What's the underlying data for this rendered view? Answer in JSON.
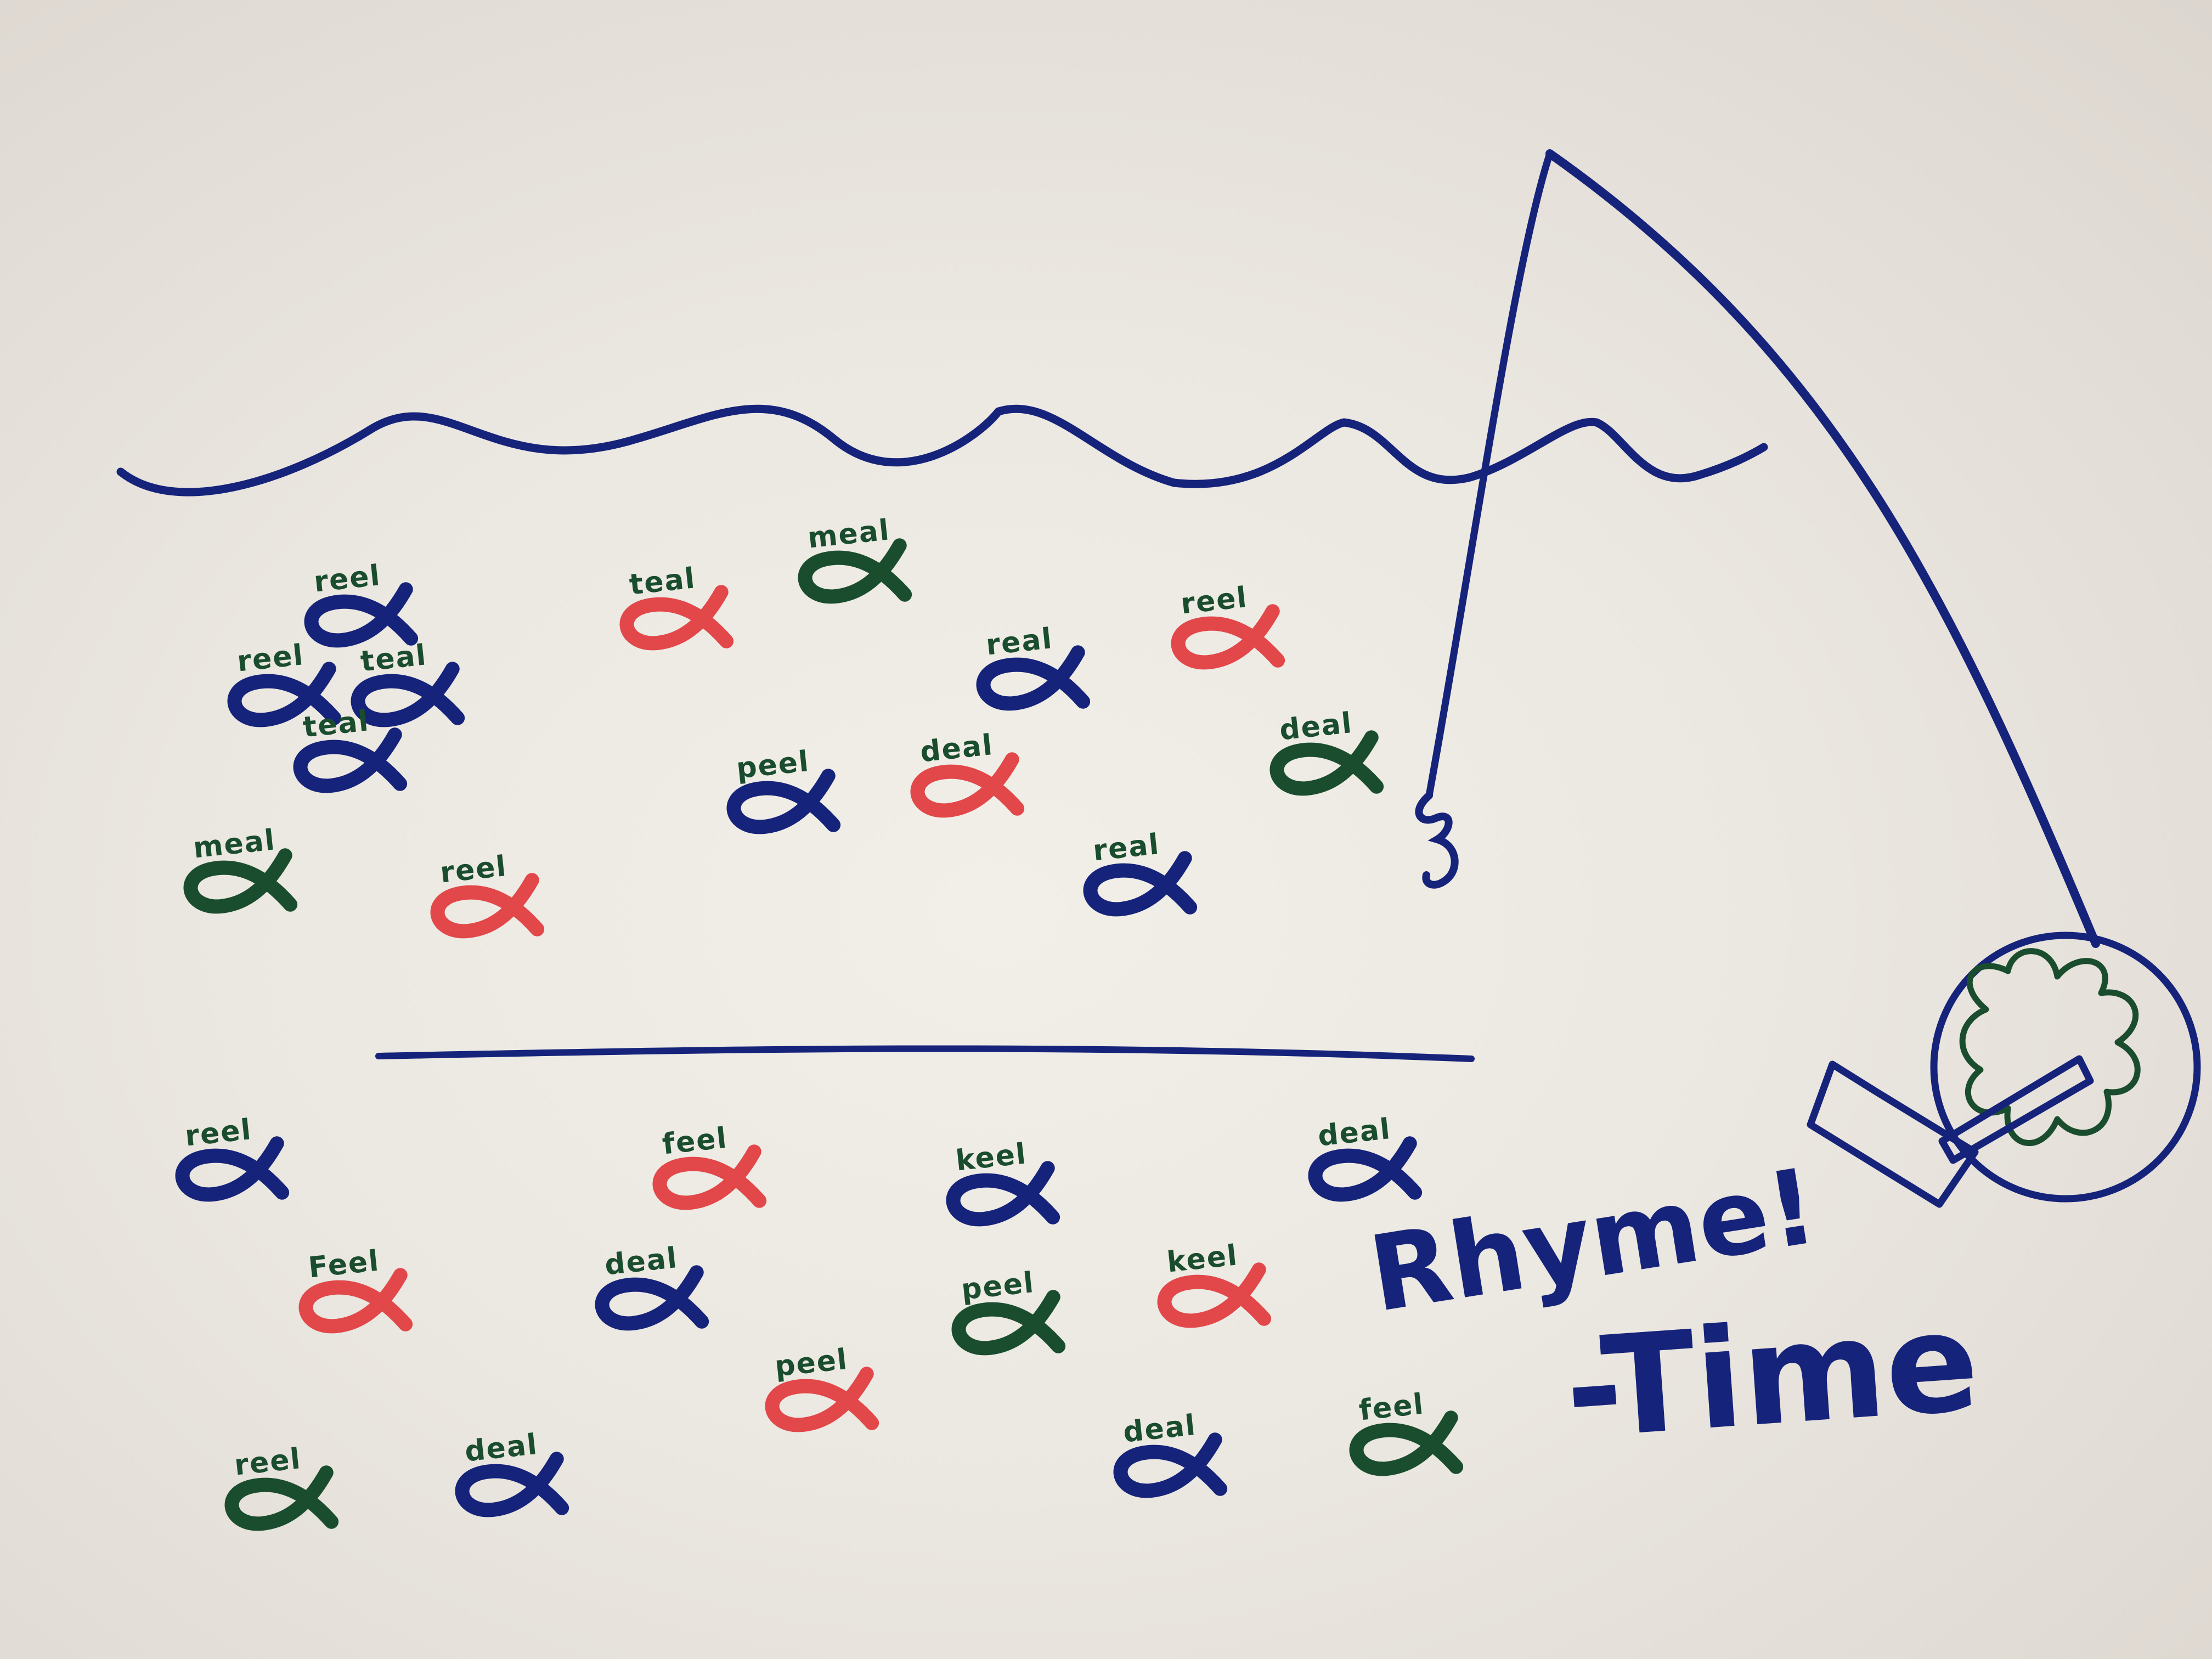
{
  "colors": {
    "paper": "#ebe7e1",
    "navy": "#16237a",
    "red": "#e2474a",
    "green": "#1a4d2e"
  },
  "title": {
    "line1": "Rhyme!",
    "line2": "-Time"
  },
  "fish": [
    {
      "word": "reel",
      "color": "navy"
    },
    {
      "word": "reel",
      "color": "navy"
    },
    {
      "word": "teal",
      "color": "navy"
    },
    {
      "word": "teal",
      "color": "navy"
    },
    {
      "word": "teal",
      "color": "red"
    },
    {
      "word": "meal",
      "color": "green"
    },
    {
      "word": "real",
      "color": "navy"
    },
    {
      "word": "reel",
      "color": "red"
    },
    {
      "word": "peel",
      "color": "navy"
    },
    {
      "word": "deal",
      "color": "red"
    },
    {
      "word": "deal",
      "color": "green"
    },
    {
      "word": "meal",
      "color": "green"
    },
    {
      "word": "reel",
      "color": "red"
    },
    {
      "word": "real",
      "color": "navy"
    },
    {
      "word": "reel",
      "color": "navy"
    },
    {
      "word": "feel",
      "color": "red"
    },
    {
      "word": "keel",
      "color": "navy"
    },
    {
      "word": "deal",
      "color": "navy"
    },
    {
      "word": "Feel",
      "color": "red"
    },
    {
      "word": "deal",
      "color": "navy"
    },
    {
      "word": "peel",
      "color": "green"
    },
    {
      "word": "keel",
      "color": "red"
    },
    {
      "word": "peel",
      "color": "red"
    },
    {
      "word": "reel",
      "color": "green"
    },
    {
      "word": "deal",
      "color": "navy"
    },
    {
      "word": "deal",
      "color": "navy"
    },
    {
      "word": "feel",
      "color": "green"
    }
  ]
}
